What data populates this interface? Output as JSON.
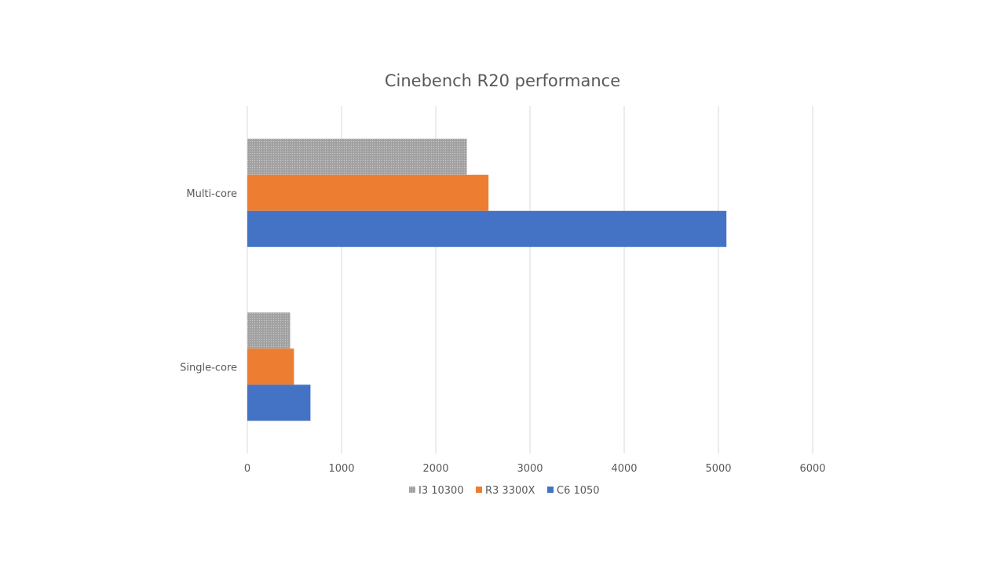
{
  "chart_data": {
    "type": "bar",
    "orientation": "horizontal",
    "title": "Cinebench R20 performance",
    "xlabel": "",
    "ylabel": "",
    "categories": [
      "Multi-core",
      "Single-core"
    ],
    "series": [
      {
        "name": "I3 10300",
        "color": "#a5a5a5",
        "pattern": "dotted-fill",
        "values": [
          2330,
          455
        ]
      },
      {
        "name": "R3 3300X",
        "color": "#ed7d31",
        "values": [
          2560,
          495
        ]
      },
      {
        "name": "C6 1050",
        "color": "#4472c4",
        "values": [
          5085,
          670
        ]
      }
    ],
    "xlim": [
      0,
      6000
    ],
    "xticks": [
      "0",
      "1000",
      "2000",
      "3000",
      "4000",
      "5000",
      "6000"
    ],
    "grid": "vertical",
    "legend": "bottom"
  }
}
